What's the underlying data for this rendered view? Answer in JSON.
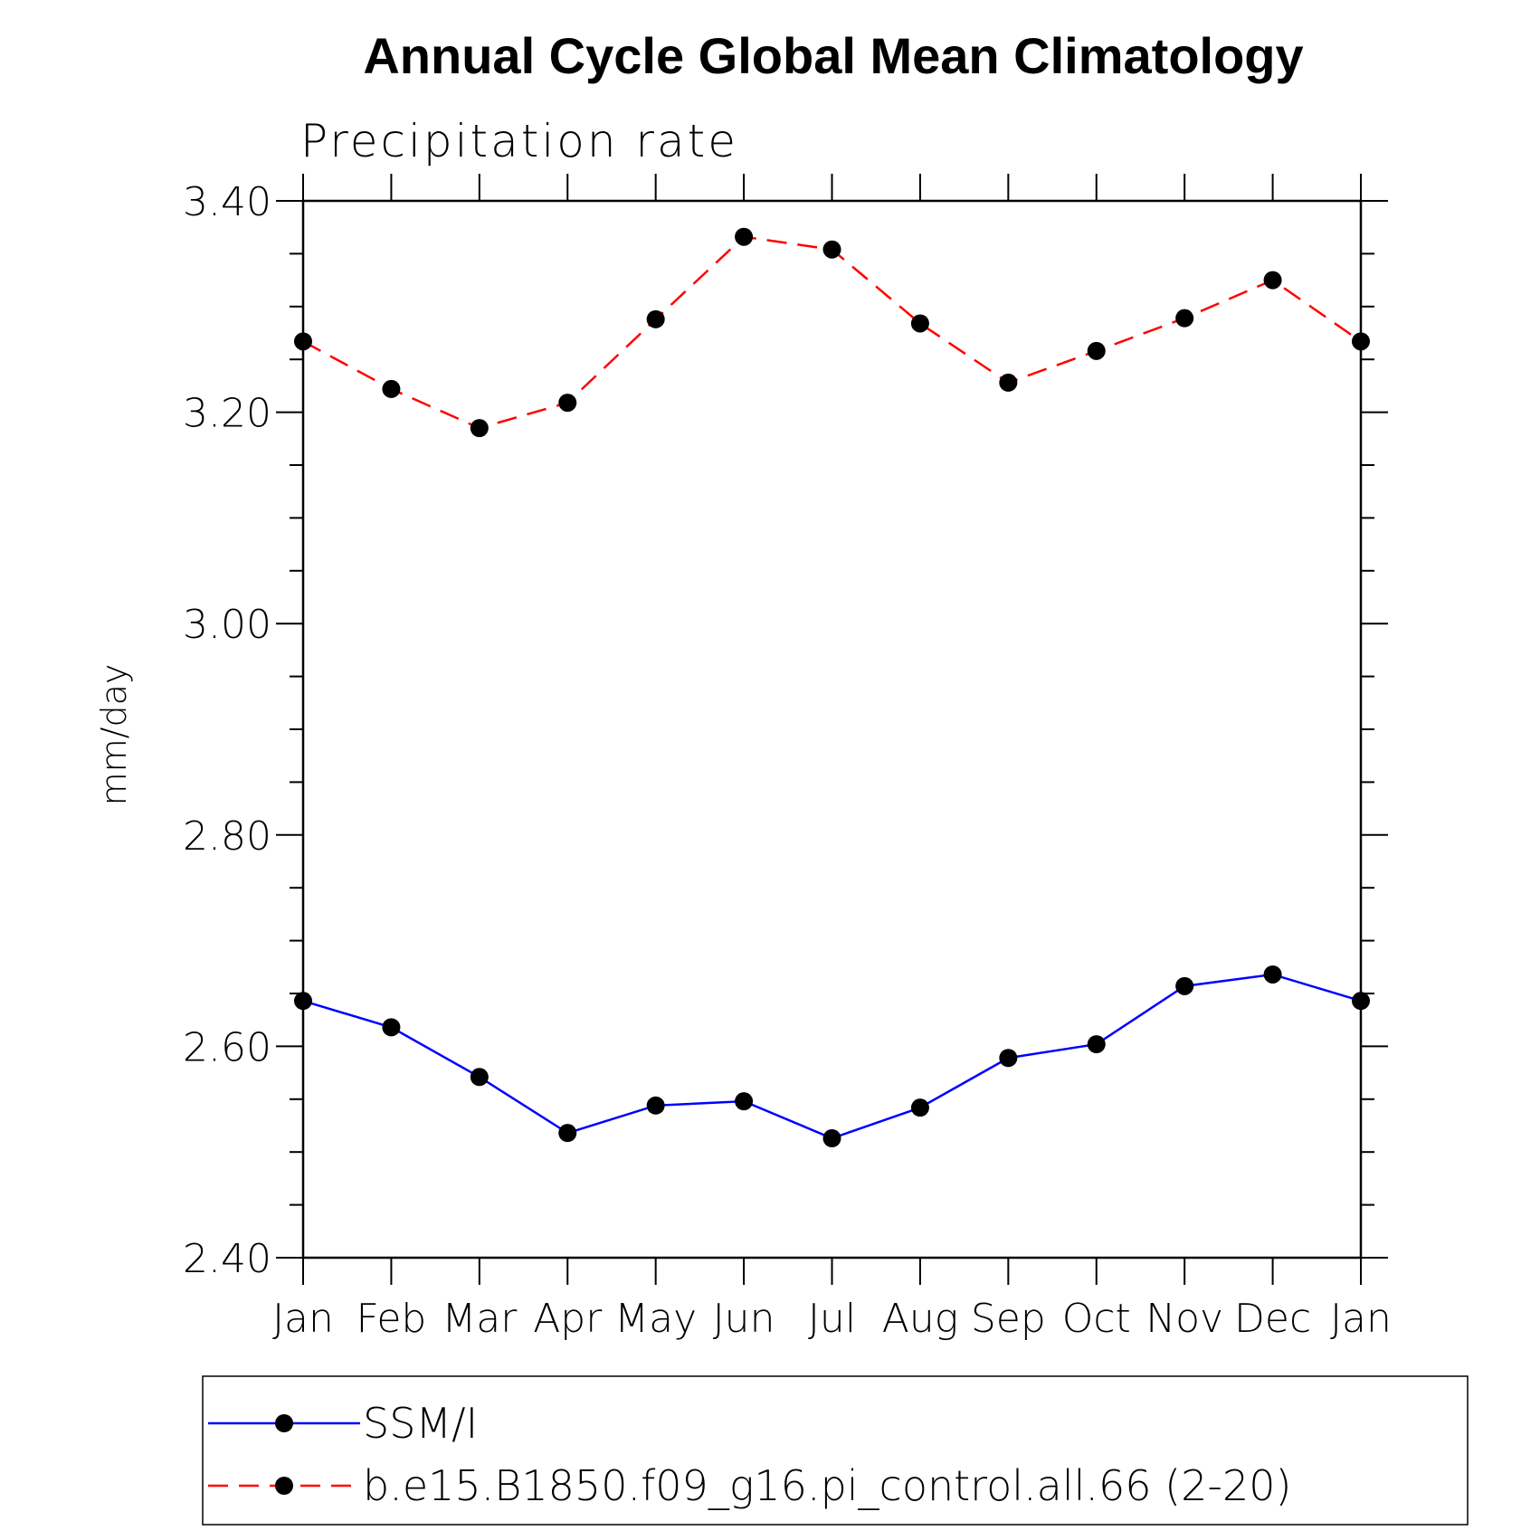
{
  "chart_data": {
    "type": "line",
    "title": "Annual Cycle Global Mean Climatology",
    "subtitle": "Precipitation rate",
    "xlabel": "",
    "ylabel": "mm/day",
    "categories": [
      "Jan",
      "Feb",
      "Mar",
      "Apr",
      "May",
      "Jun",
      "Jul",
      "Aug",
      "Sep",
      "Oct",
      "Nov",
      "Dec",
      "Jan"
    ],
    "ylim": [
      2.4,
      3.4
    ],
    "yticks": [
      "2.40",
      "2.60",
      "2.80",
      "3.00",
      "3.20",
      "3.40"
    ],
    "grid": false,
    "legend_position": "bottom",
    "series": [
      {
        "name": "SSM/I",
        "color": "#0000ff",
        "line_style": "solid",
        "marker": "filled-circle",
        "values": [
          2.643,
          2.618,
          2.571,
          2.518,
          2.544,
          2.548,
          2.513,
          2.542,
          2.589,
          2.602,
          2.657,
          2.668,
          2.643
        ]
      },
      {
        "name": "b.e15.B1850.f09_g16.pi_control.all.66 (2-20)",
        "color": "#ff0000",
        "line_style": "dashed",
        "marker": "filled-circle",
        "values": [
          3.267,
          3.222,
          3.185,
          3.209,
          3.288,
          3.366,
          3.354,
          3.284,
          3.228,
          3.258,
          3.289,
          3.325,
          3.267
        ]
      }
    ]
  }
}
